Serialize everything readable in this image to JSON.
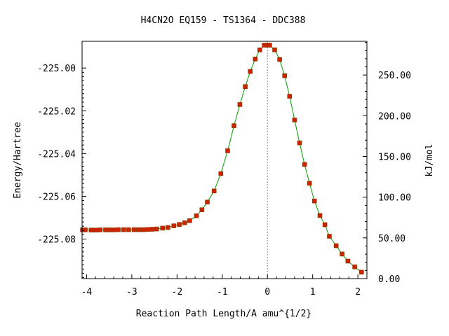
{
  "chart_data": {
    "type": "scatter",
    "title": "H4CN2O   EQ159 - TS1364 - DDC388",
    "xlabel": "Reaction Path Length/A amu^{1/2}",
    "ylabel": "Energy/Hartree",
    "y2label": "kJ/mol",
    "xlim": [
      -4.1,
      2.2
    ],
    "ylim": [
      -225.0985,
      -224.9875
    ],
    "y2lim": [
      0.0,
      291.4
    ],
    "x_ticks": [
      -4,
      -3,
      -2,
      -1,
      0,
      1,
      2
    ],
    "x_tick_labels": [
      "-4",
      "-3",
      "-2",
      "-1",
      "0",
      "1",
      "2"
    ],
    "y_ticks": [
      -225.0,
      -225.02,
      -225.04,
      -225.06,
      -225.08
    ],
    "y_tick_labels": [
      "-225.00",
      "-225.02",
      "-225.04",
      "-225.06",
      "-225.08"
    ],
    "y2_ticks": [
      0,
      50,
      100,
      150,
      200,
      250
    ],
    "y2_tick_labels": [
      "0.00",
      "50.00",
      "100.00",
      "150.00",
      "200.00",
      "250.00"
    ],
    "grid": false,
    "ts_marker_x": 0.0,
    "colors": {
      "line": "#00a000",
      "marker": "#cc2200",
      "ts_line": "#888888"
    },
    "points": [
      [
        -4.09,
        -225.0757
      ],
      [
        -4.03,
        -225.0757
      ],
      [
        -3.9,
        -225.0758
      ],
      [
        -3.8,
        -225.0758
      ],
      [
        -3.7,
        -225.0757
      ],
      [
        -3.58,
        -225.0757
      ],
      [
        -3.5,
        -225.0757
      ],
      [
        -3.4,
        -225.0757
      ],
      [
        -3.3,
        -225.0756
      ],
      [
        -3.18,
        -225.0756
      ],
      [
        -3.07,
        -225.0756
      ],
      [
        -2.95,
        -225.0756
      ],
      [
        -2.85,
        -225.0756
      ],
      [
        -2.75,
        -225.0756
      ],
      [
        -2.65,
        -225.0755
      ],
      [
        -2.55,
        -225.0754
      ],
      [
        -2.45,
        -225.0753
      ],
      [
        -2.32,
        -225.0749
      ],
      [
        -2.2,
        -225.0746
      ],
      [
        -2.07,
        -225.0738
      ],
      [
        -1.95,
        -225.0732
      ],
      [
        -1.83,
        -225.0724
      ],
      [
        -1.72,
        -225.0714
      ],
      [
        -1.57,
        -225.0691
      ],
      [
        -1.45,
        -225.0663
      ],
      [
        -1.33,
        -225.0627
      ],
      [
        -1.18,
        -225.0575
      ],
      [
        -1.03,
        -225.0494
      ],
      [
        -0.88,
        -225.0387
      ],
      [
        -0.74,
        -225.027
      ],
      [
        -0.61,
        -225.0171
      ],
      [
        -0.49,
        -225.0087
      ],
      [
        -0.38,
        -225.0016
      ],
      [
        -0.27,
        -224.9958
      ],
      [
        -0.17,
        -224.9915
      ],
      [
        -0.07,
        -224.9893
      ],
      [
        0.0,
        -224.9893
      ],
      [
        0.05,
        -224.9893
      ],
      [
        0.16,
        -224.9915
      ],
      [
        0.27,
        -224.996
      ],
      [
        0.38,
        -225.0036
      ],
      [
        0.49,
        -225.0132
      ],
      [
        0.6,
        -225.0243
      ],
      [
        0.71,
        -225.035
      ],
      [
        0.82,
        -225.0451
      ],
      [
        0.93,
        -225.0539
      ],
      [
        1.04,
        -225.0622
      ],
      [
        1.16,
        -225.069
      ],
      [
        1.27,
        -225.0733
      ],
      [
        1.37,
        -225.0787
      ],
      [
        1.52,
        -225.0831
      ],
      [
        1.65,
        -225.087
      ],
      [
        1.78,
        -225.0903
      ],
      [
        1.93,
        -225.093
      ],
      [
        2.08,
        -225.0955
      ]
    ]
  }
}
